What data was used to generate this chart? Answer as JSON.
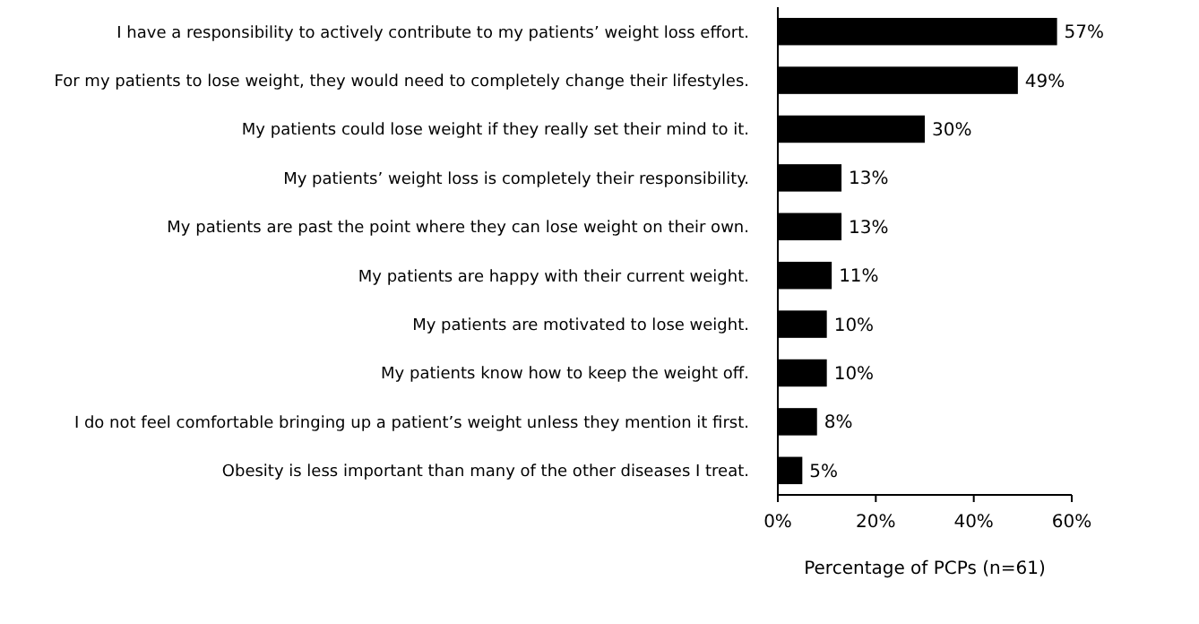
{
  "chart_data": {
    "type": "bar",
    "orientation": "horizontal",
    "xlabel": "Percentage of PCPs (n=61)",
    "categories": [
      "I have a responsibility to actively contribute to my patients’ weight loss effort.",
      "For my patients to lose weight, they would need to completely change their lifestyles.",
      "My patients could lose weight if they really set their mind to it.",
      "My patients’ weight loss is completely their responsibility.",
      "My patients are past the point where they can lose weight on their own.",
      "My patients are happy with their current weight.",
      "My patients are motivated to lose weight.",
      "My patients know how to keep the weight off.",
      "I do not feel comfortable bringing up a patient’s weight unless they mention it first.",
      "Obesity is less important than many of the other diseases I treat."
    ],
    "values": [
      57,
      49,
      30,
      13,
      13,
      11,
      10,
      10,
      8,
      5
    ],
    "value_labels": [
      "57%",
      "49%",
      "30%",
      "13%",
      "13%",
      "11%",
      "10%",
      "10%",
      "8%",
      "5%"
    ],
    "color": "#000000",
    "xlim": [
      0,
      60
    ],
    "xticks": [
      {
        "value": 0,
        "label": "0%"
      },
      {
        "value": 20,
        "label": "20%"
      },
      {
        "value": 40,
        "label": "40%"
      },
      {
        "value": 60,
        "label": "60%"
      }
    ],
    "grid": false
  }
}
